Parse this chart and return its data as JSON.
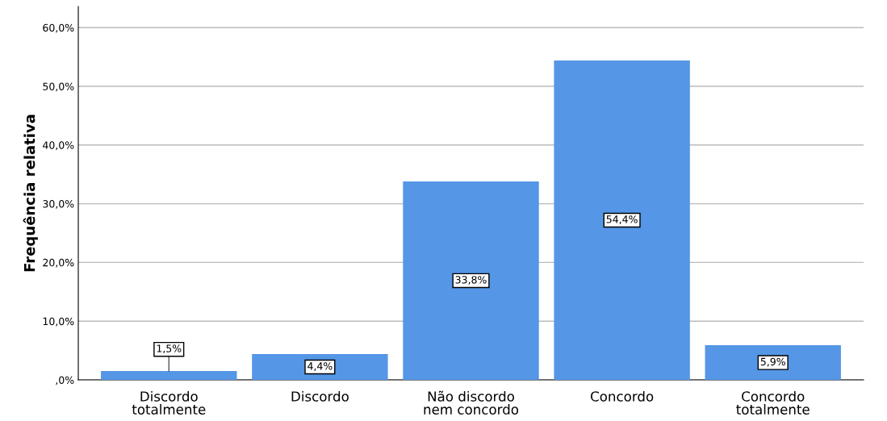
{
  "chart_data": {
    "type": "bar",
    "ylabel": "Frequência relativa",
    "categories": [
      "Discordo\ntotalmente",
      "Discordo",
      "Não discordo\nnem concordo",
      "Concordo",
      "Concordo\ntotalmente"
    ],
    "values": [
      1.5,
      4.4,
      33.8,
      54.4,
      5.9
    ],
    "value_labels": [
      "1,5%",
      "4,4%",
      "33,8%",
      "54,4%",
      "5,9%"
    ],
    "color": "#5596e6",
    "ylim": [
      0,
      63.6
    ],
    "yticks": [
      {
        "value": 0,
        "label": ",0%"
      },
      {
        "value": 10,
        "label": "10,0%"
      },
      {
        "value": 20,
        "label": "20,0%"
      },
      {
        "value": 30,
        "label": "30,0%"
      },
      {
        "value": 40,
        "label": "40,0%"
      },
      {
        "value": 50,
        "label": "50,0%"
      },
      {
        "value": 60,
        "label": "60,0%"
      }
    ],
    "grid": "y",
    "legend": false
  }
}
